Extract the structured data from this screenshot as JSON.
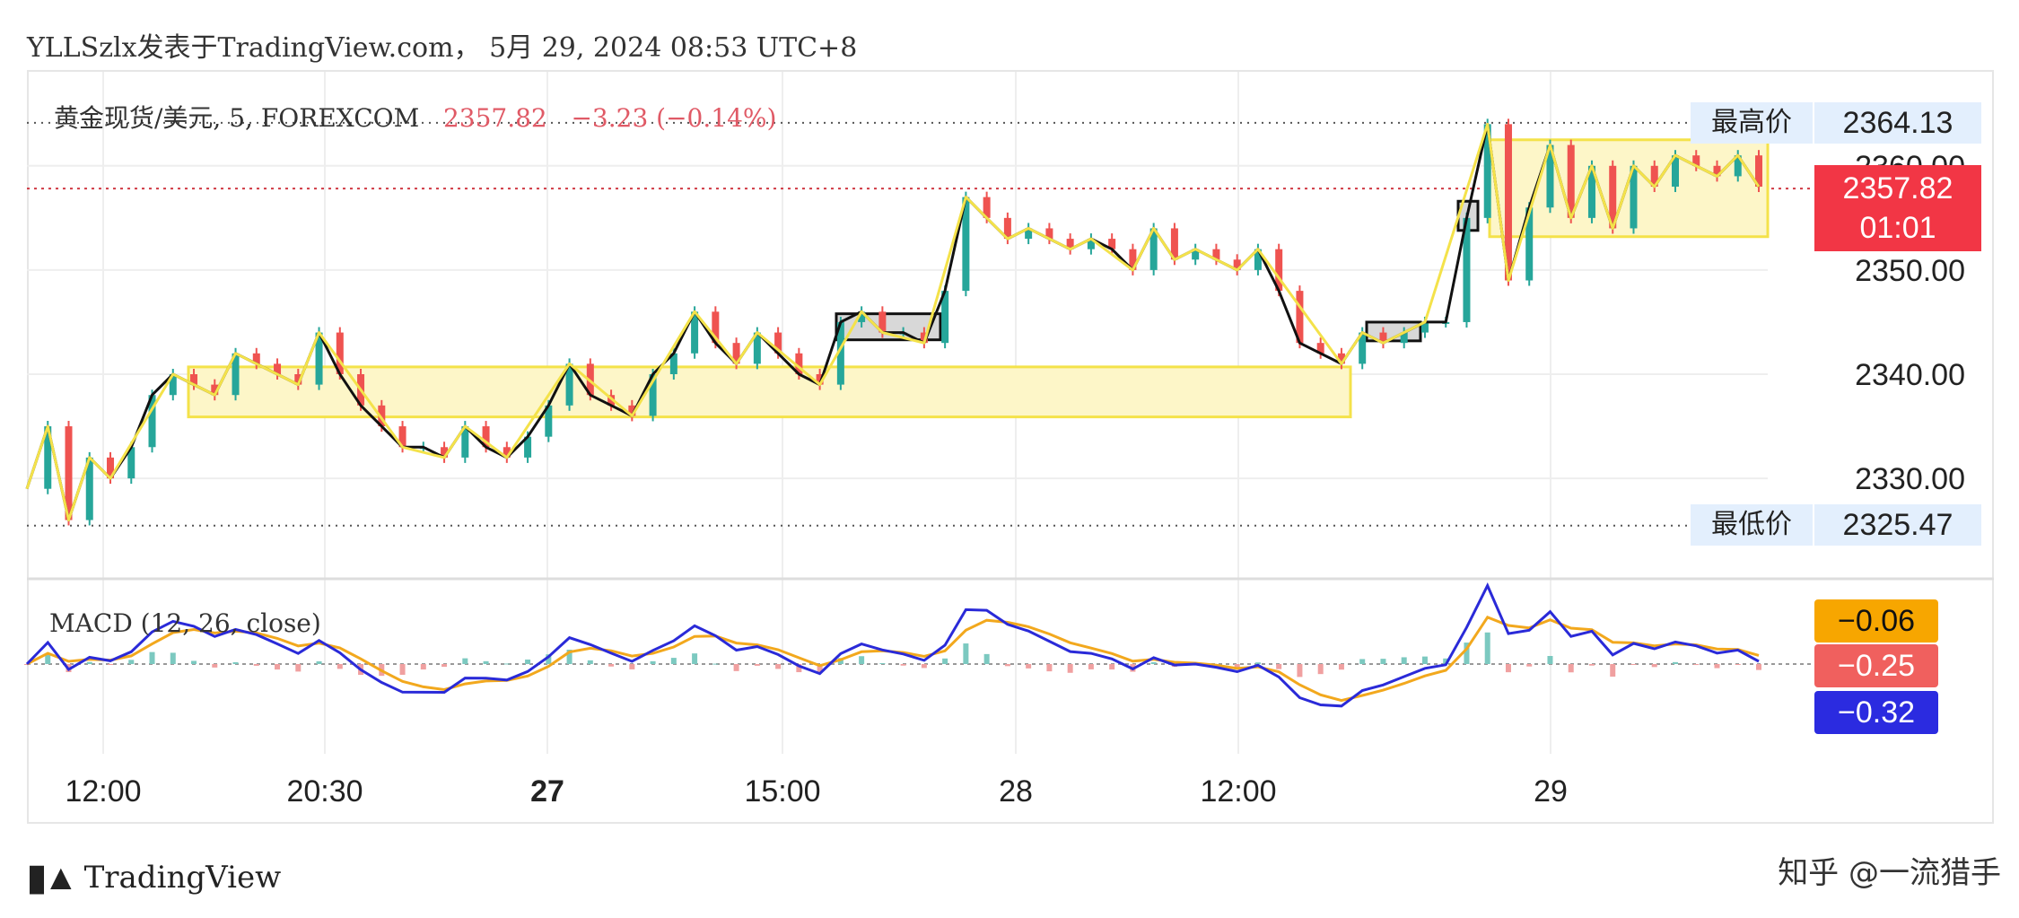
{
  "header": {
    "title": "YLLSzlx发表于TradingView.com， 5月 29, 2024 08:53 UTC+8"
  },
  "symbol": {
    "name": "黄金现货/美元, 5, FOREXCOM",
    "last": "2357.82",
    "change": "−3.23 (−0.14%)"
  },
  "tags": {
    "high_label": "最高价",
    "high_value": "2364.13",
    "low_label": "最低价",
    "low_value": "2325.47",
    "current_value": "2357.82",
    "countdown": "01:01",
    "macd_value": "−0.06",
    "signal_value": "−0.25",
    "hist_value": "−0.32"
  },
  "macd": {
    "label": "MACD (12, 26, close)"
  },
  "colors": {
    "up": "#26a69a",
    "down": "#ef5350",
    "zigzag": "#f4e24a",
    "zone_fill": "#fdf6c8",
    "macd_line": "#2a2ad8",
    "signal_line": "#f2a81d",
    "current_tag": "#f23645",
    "tag_bg": "#e3effd"
  },
  "footer": {
    "brand": "TradingView",
    "watermark": "知乎 @一流猎手"
  },
  "chart_data": {
    "type": "line",
    "title": "黄金现货/美元, 5, FOREXCOM",
    "y_ticks": [
      "2330.00",
      "2340.00",
      "2350.00",
      "2360.00"
    ],
    "ylim": [
      2322.3,
      2366.6
    ],
    "x_ticks": [
      "12:00",
      "20:30",
      "27",
      "15:00",
      "28",
      "12:00",
      "29"
    ],
    "series": [
      {
        "values": [
          2329,
          2335,
          2326,
          2332,
          2330,
          2333,
          2338,
          2340,
          2339,
          2338,
          2342,
          2341,
          2340,
          2339,
          2344,
          2340,
          2337,
          2335,
          2333,
          2333,
          2332,
          2335,
          2333,
          2332,
          2334,
          2337,
          2341,
          2338,
          2337,
          2336,
          2340,
          2342,
          2346,
          2343,
          2341,
          2344,
          2342,
          2340,
          2339,
          2345,
          2346,
          2344,
          2344,
          2343,
          2348,
          2357,
          2355,
          2353,
          2354,
          2353,
          2352,
          2353,
          2352,
          2350,
          2354,
          2351,
          2352,
          2351,
          2350,
          2352,
          2348,
          2343,
          2342,
          2341,
          2344,
          2343,
          2344,
          2345,
          2345,
          2355,
          2364,
          2349,
          2356,
          2362,
          2355,
          2360,
          2354,
          2360,
          2358,
          2361,
          2360,
          2359,
          2361,
          2358
        ]
      }
    ],
    "legend": "none",
    "grid": true
  }
}
